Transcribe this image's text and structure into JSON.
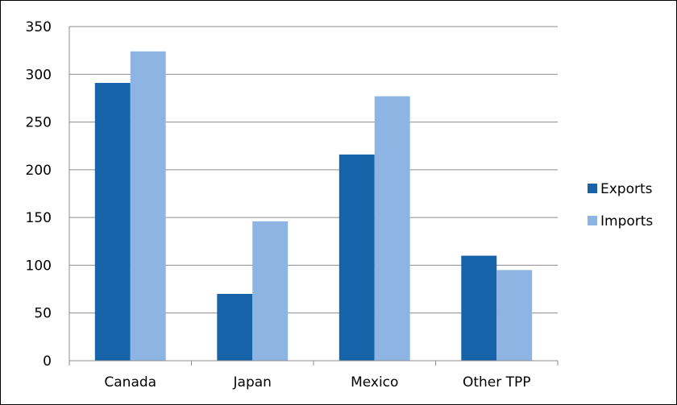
{
  "chart_data": {
    "type": "bar",
    "title": "",
    "xlabel": "",
    "ylabel": "",
    "categories": [
      "Canada",
      "Japan",
      "Mexico",
      "Other TPP"
    ],
    "series": [
      {
        "name": "Exports",
        "color": "#1763AA",
        "values": [
          291,
          70,
          216,
          110
        ]
      },
      {
        "name": "Imports",
        "color": "#8EB4E3",
        "values": [
          324,
          146,
          277,
          95
        ]
      }
    ],
    "ylim": [
      0,
      350
    ],
    "yticks": [
      0,
      50,
      100,
      150,
      200,
      250,
      300,
      350
    ],
    "grid": true,
    "legend": "right"
  }
}
